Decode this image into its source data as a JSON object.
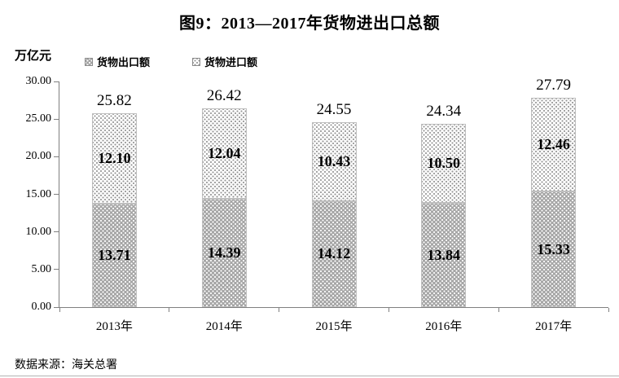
{
  "chart_data": {
    "type": "bar",
    "stacked": true,
    "title": "图9：2013—2017年货物进出口总额",
    "unit_label": "万亿元",
    "categories": [
      "2013年",
      "2014年",
      "2015年",
      "2016年",
      "2017年"
    ],
    "series": [
      {
        "name": "货物出口额",
        "pattern": "dark-dots",
        "labels": [
          "13.71",
          "14.39",
          "14.12",
          "13.84",
          "15.33"
        ],
        "values": [
          13.71,
          14.39,
          14.12,
          13.84,
          15.33
        ]
      },
      {
        "name": "货物进口额",
        "pattern": "light-dots",
        "labels": [
          "12.10",
          "12.04",
          "10.43",
          "10.50",
          "12.46"
        ],
        "values": [
          12.1,
          12.04,
          10.43,
          10.5,
          12.46
        ]
      }
    ],
    "totals": [
      "25.82",
      "26.42",
      "24.55",
      "24.34",
      "27.79"
    ],
    "ylim": [
      0,
      30
    ],
    "yticks": [
      "0.00",
      "5.00",
      "10.00",
      "15.00",
      "20.00",
      "25.00",
      "30.00"
    ],
    "legend_position": "top-left",
    "grid": false
  },
  "source": {
    "label": "数据来源：海关总署"
  },
  "colors": {
    "export_fill": "#a6a6a6",
    "export_dot": "#ffffff",
    "import_fill": "#ffffff",
    "import_dot": "#969696",
    "bar_border": "#bfbfbf",
    "axis": "#808080",
    "text": "#000000"
  }
}
